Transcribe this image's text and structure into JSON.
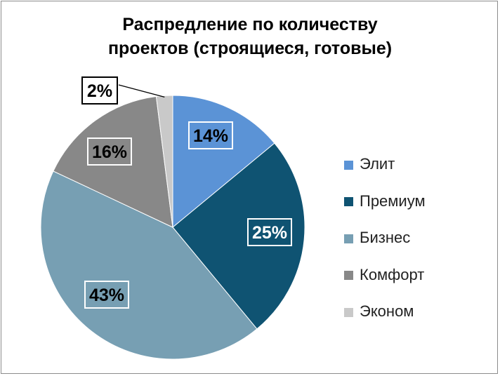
{
  "chart_data": {
    "type": "pie",
    "title_lines": [
      "Распредление по количеству",
      "проектов (строящиеся, готовые)"
    ],
    "categories": [
      "Элит",
      "Премиум",
      "Бизнес",
      "Комфорт",
      "Эконом"
    ],
    "values": [
      14,
      25,
      43,
      16,
      2
    ],
    "labels": [
      "14%",
      "25%",
      "43%",
      "16%",
      "2%"
    ],
    "colors": [
      "#5b93d6",
      "#0f5372",
      "#779fb3",
      "#888888",
      "#c9c9c9"
    ],
    "legend_position": "right"
  }
}
